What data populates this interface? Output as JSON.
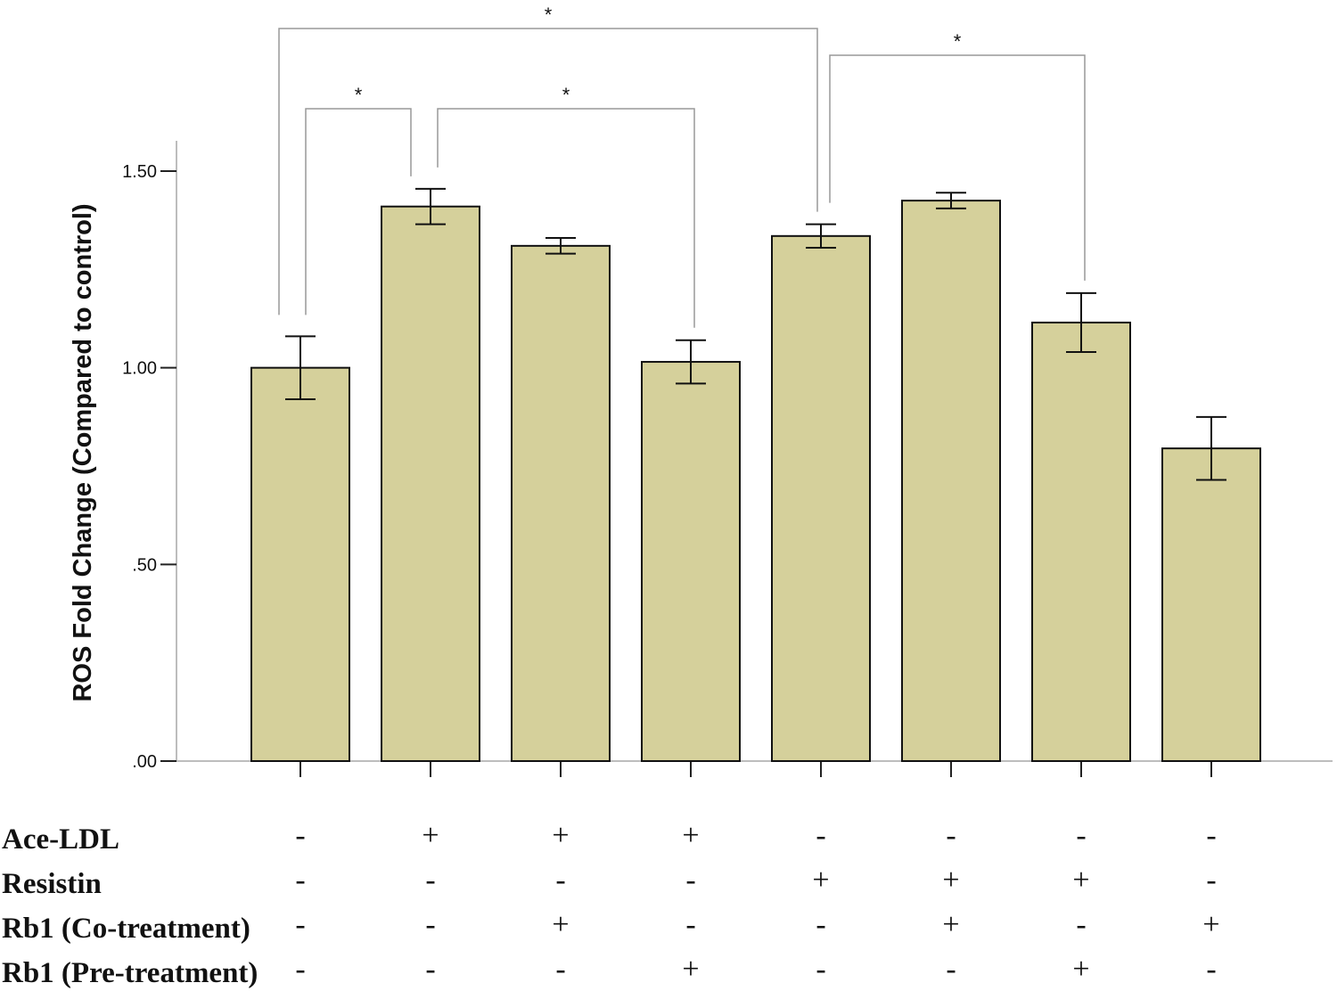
{
  "chart_data": {
    "type": "bar",
    "title": "",
    "xlabel": "",
    "ylabel": "ROS Fold Change (Compared to control)",
    "ylim": [
      0,
      1.5
    ],
    "yticks": [
      ".00",
      ".50",
      "1.00",
      "1.50"
    ],
    "ytick_values": [
      0,
      0.5,
      1.0,
      1.5
    ],
    "grid": false,
    "bar_color": "#d5d09b",
    "categories": [
      "1",
      "2",
      "3",
      "4",
      "5",
      "6",
      "7",
      "8"
    ],
    "values": [
      1.0,
      1.41,
      1.31,
      1.015,
      1.335,
      1.425,
      1.115,
      0.795
    ],
    "errors": [
      0.08,
      0.045,
      0.02,
      0.055,
      0.03,
      0.02,
      0.075,
      0.08
    ],
    "conditions": [
      {
        "label": "Ace-LDL",
        "signs": [
          "-",
          "+",
          "+",
          "+",
          "-",
          "-",
          "-",
          "-"
        ]
      },
      {
        "label": "Resistin",
        "signs": [
          "-",
          "-",
          "-",
          "-",
          "+",
          "+",
          "+",
          "-"
        ]
      },
      {
        "label": "Rb1 (Co-treatment)",
        "signs": [
          "-",
          "-",
          "+",
          "-",
          "-",
          "+",
          "-",
          "+"
        ]
      },
      {
        "label": "Rb1 (Pre-treatment)",
        "signs": [
          "-",
          "-",
          "-",
          "+",
          "-",
          "-",
          "+",
          "-"
        ]
      }
    ],
    "significance": [
      {
        "from": 0,
        "to": 1,
        "label": "*"
      },
      {
        "from": 1,
        "to": 3,
        "label": "*"
      },
      {
        "from": 0,
        "to": 4,
        "label": "*"
      },
      {
        "from": 4,
        "to": 6,
        "label": "*"
      }
    ]
  }
}
